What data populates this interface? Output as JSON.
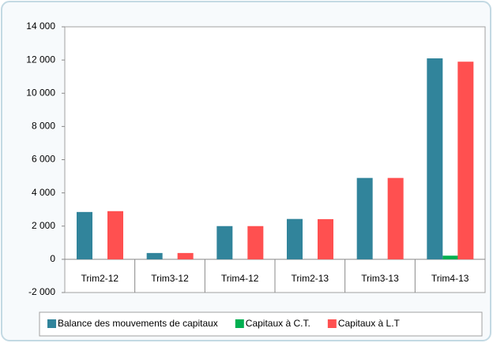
{
  "chart_data": {
    "type": "bar",
    "categories": [
      "Trim2-12",
      "Trim3-12",
      "Trim4-12",
      "Trim2-13",
      "Trim3-13",
      "Trim4-13"
    ],
    "series": [
      {
        "name": "Balance des mouvements de capitaux",
        "color": "#31849b",
        "values": [
          2850,
          380,
          2000,
          2430,
          4900,
          12100
        ]
      },
      {
        "name": "Capitaux à C.T.",
        "color": "#00b050",
        "values": [
          0,
          0,
          0,
          0,
          0,
          220
        ]
      },
      {
        "name": "Capitaux à L.T",
        "color": "#ff5050",
        "values": [
          2900,
          380,
          2000,
          2420,
          4900,
          11900
        ]
      }
    ],
    "ylim": [
      -2000,
      14000
    ],
    "yticks": [
      {
        "value": -2000,
        "label": "-2 000"
      },
      0,
      {
        "value": 2000,
        "label": "2 000"
      },
      {
        "value": 4000,
        "label": "4 000"
      },
      {
        "value": 6000,
        "label": "6 000"
      },
      {
        "value": 8000,
        "label": "8 000"
      },
      {
        "value": 10000,
        "label": "10 000"
      },
      {
        "value": 12000,
        "label": "12 000"
      },
      {
        "value": 14000,
        "label": "14 000"
      }
    ],
    "grid": false,
    "legend": "bottom"
  }
}
